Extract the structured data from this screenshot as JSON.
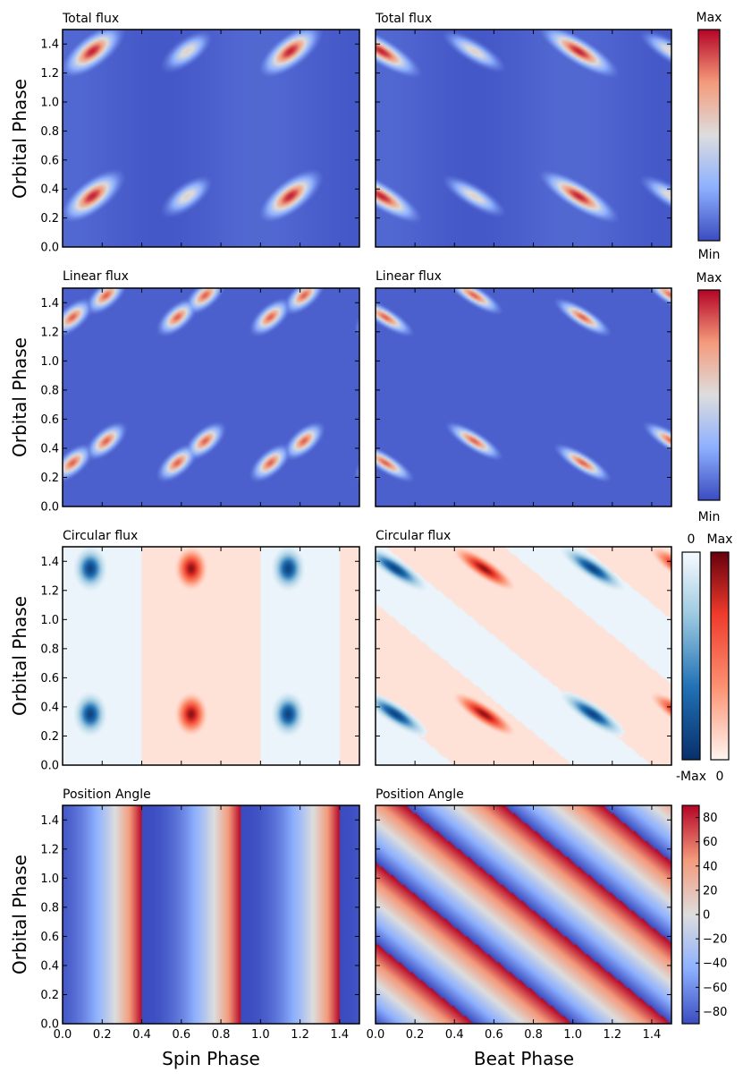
{
  "chart_data": {
    "type": "heatmap",
    "panels": [
      {
        "id": "total-spin",
        "title": "Total flux",
        "quantity": "total",
        "x_axis": "spin",
        "xlim": [
          0,
          1.5
        ],
        "ylim": [
          0,
          1.5
        ]
      },
      {
        "id": "total-beat",
        "title": "Total flux",
        "quantity": "total",
        "x_axis": "beat",
        "xlim": [
          0,
          1.5
        ],
        "ylim": [
          0,
          1.5
        ]
      },
      {
        "id": "linear-spin",
        "title": "Linear flux",
        "quantity": "linear",
        "x_axis": "spin",
        "xlim": [
          0,
          1.5
        ],
        "ylim": [
          0,
          1.5
        ]
      },
      {
        "id": "linear-beat",
        "title": "Linear flux",
        "quantity": "linear",
        "x_axis": "beat",
        "xlim": [
          0,
          1.5
        ],
        "ylim": [
          0,
          1.5
        ]
      },
      {
        "id": "circular-spin",
        "title": "Circular flux",
        "quantity": "circular",
        "x_axis": "spin",
        "xlim": [
          0,
          1.5
        ],
        "ylim": [
          0,
          1.5
        ]
      },
      {
        "id": "circular-beat",
        "title": "Circular flux",
        "quantity": "circular",
        "x_axis": "beat",
        "xlim": [
          0,
          1.5
        ],
        "ylim": [
          0,
          1.5
        ]
      },
      {
        "id": "pa-spin",
        "title": "Position Angle",
        "quantity": "pa",
        "x_axis": "spin",
        "xlim": [
          0,
          1.5
        ],
        "ylim": [
          0,
          1.5
        ]
      },
      {
        "id": "pa-beat",
        "title": "Position Angle",
        "quantity": "pa",
        "x_axis": "beat",
        "xlim": [
          0,
          1.5
        ],
        "ylim": [
          0,
          1.5
        ]
      }
    ],
    "y_label": "Orbital Phase",
    "x_labels": {
      "left": "Spin Phase",
      "right": "Beat Phase"
    },
    "y_ticks": [
      "0.0",
      "0.2",
      "0.4",
      "0.6",
      "0.8",
      "1.0",
      "1.2",
      "1.4"
    ],
    "x_ticks": [
      "0.0",
      "0.2",
      "0.4",
      "0.6",
      "0.8",
      "1.0",
      "1.2",
      "1.4"
    ],
    "colorbars": {
      "total": {
        "top": "Max",
        "bottom": "Min",
        "colormap": "coolwarm"
      },
      "linear": {
        "top": "Max",
        "bottom": "Min",
        "colormap": "coolwarm"
      },
      "circular": {
        "negative": {
          "top": "0",
          "bottom": "-Max",
          "colormap": "blues"
        },
        "positive": {
          "top": "Max",
          "bottom": "0",
          "colormap": "reds"
        }
      },
      "pa": {
        "range": [
          -90,
          90
        ],
        "ticks": [
          "80",
          "60",
          "40",
          "20",
          "0",
          "−20",
          "−40",
          "−60",
          "−80"
        ],
        "colormap": "coolwarm"
      }
    },
    "colors": {
      "cool": "#3b4cc0",
      "neutral": "#dddddd",
      "warm": "#b40426",
      "blue_dark": "#08306b",
      "red_dark": "#67000d"
    }
  }
}
